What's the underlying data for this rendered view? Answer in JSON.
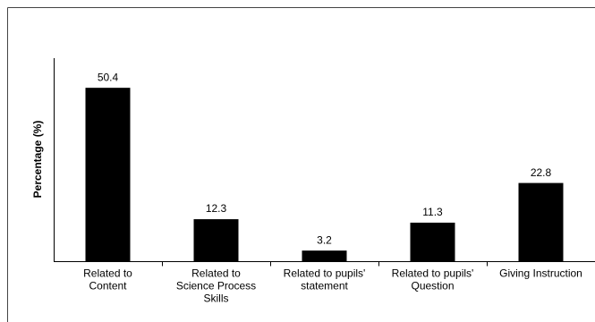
{
  "chart_data": {
    "type": "bar",
    "y_label": "Percentage (%)",
    "categories": [
      [
        "Related to",
        "Content"
      ],
      [
        "Related to",
        "Science Process",
        "Skills"
      ],
      [
        "Related to pupils'",
        "statement"
      ],
      [
        "Related to pupils'",
        "Question"
      ],
      [
        "Giving Instruction"
      ]
    ],
    "values": [
      50.4,
      12.3,
      3.2,
      11.3,
      22.8
    ],
    "color": "#000000",
    "ylim": [
      0,
      59
    ]
  }
}
